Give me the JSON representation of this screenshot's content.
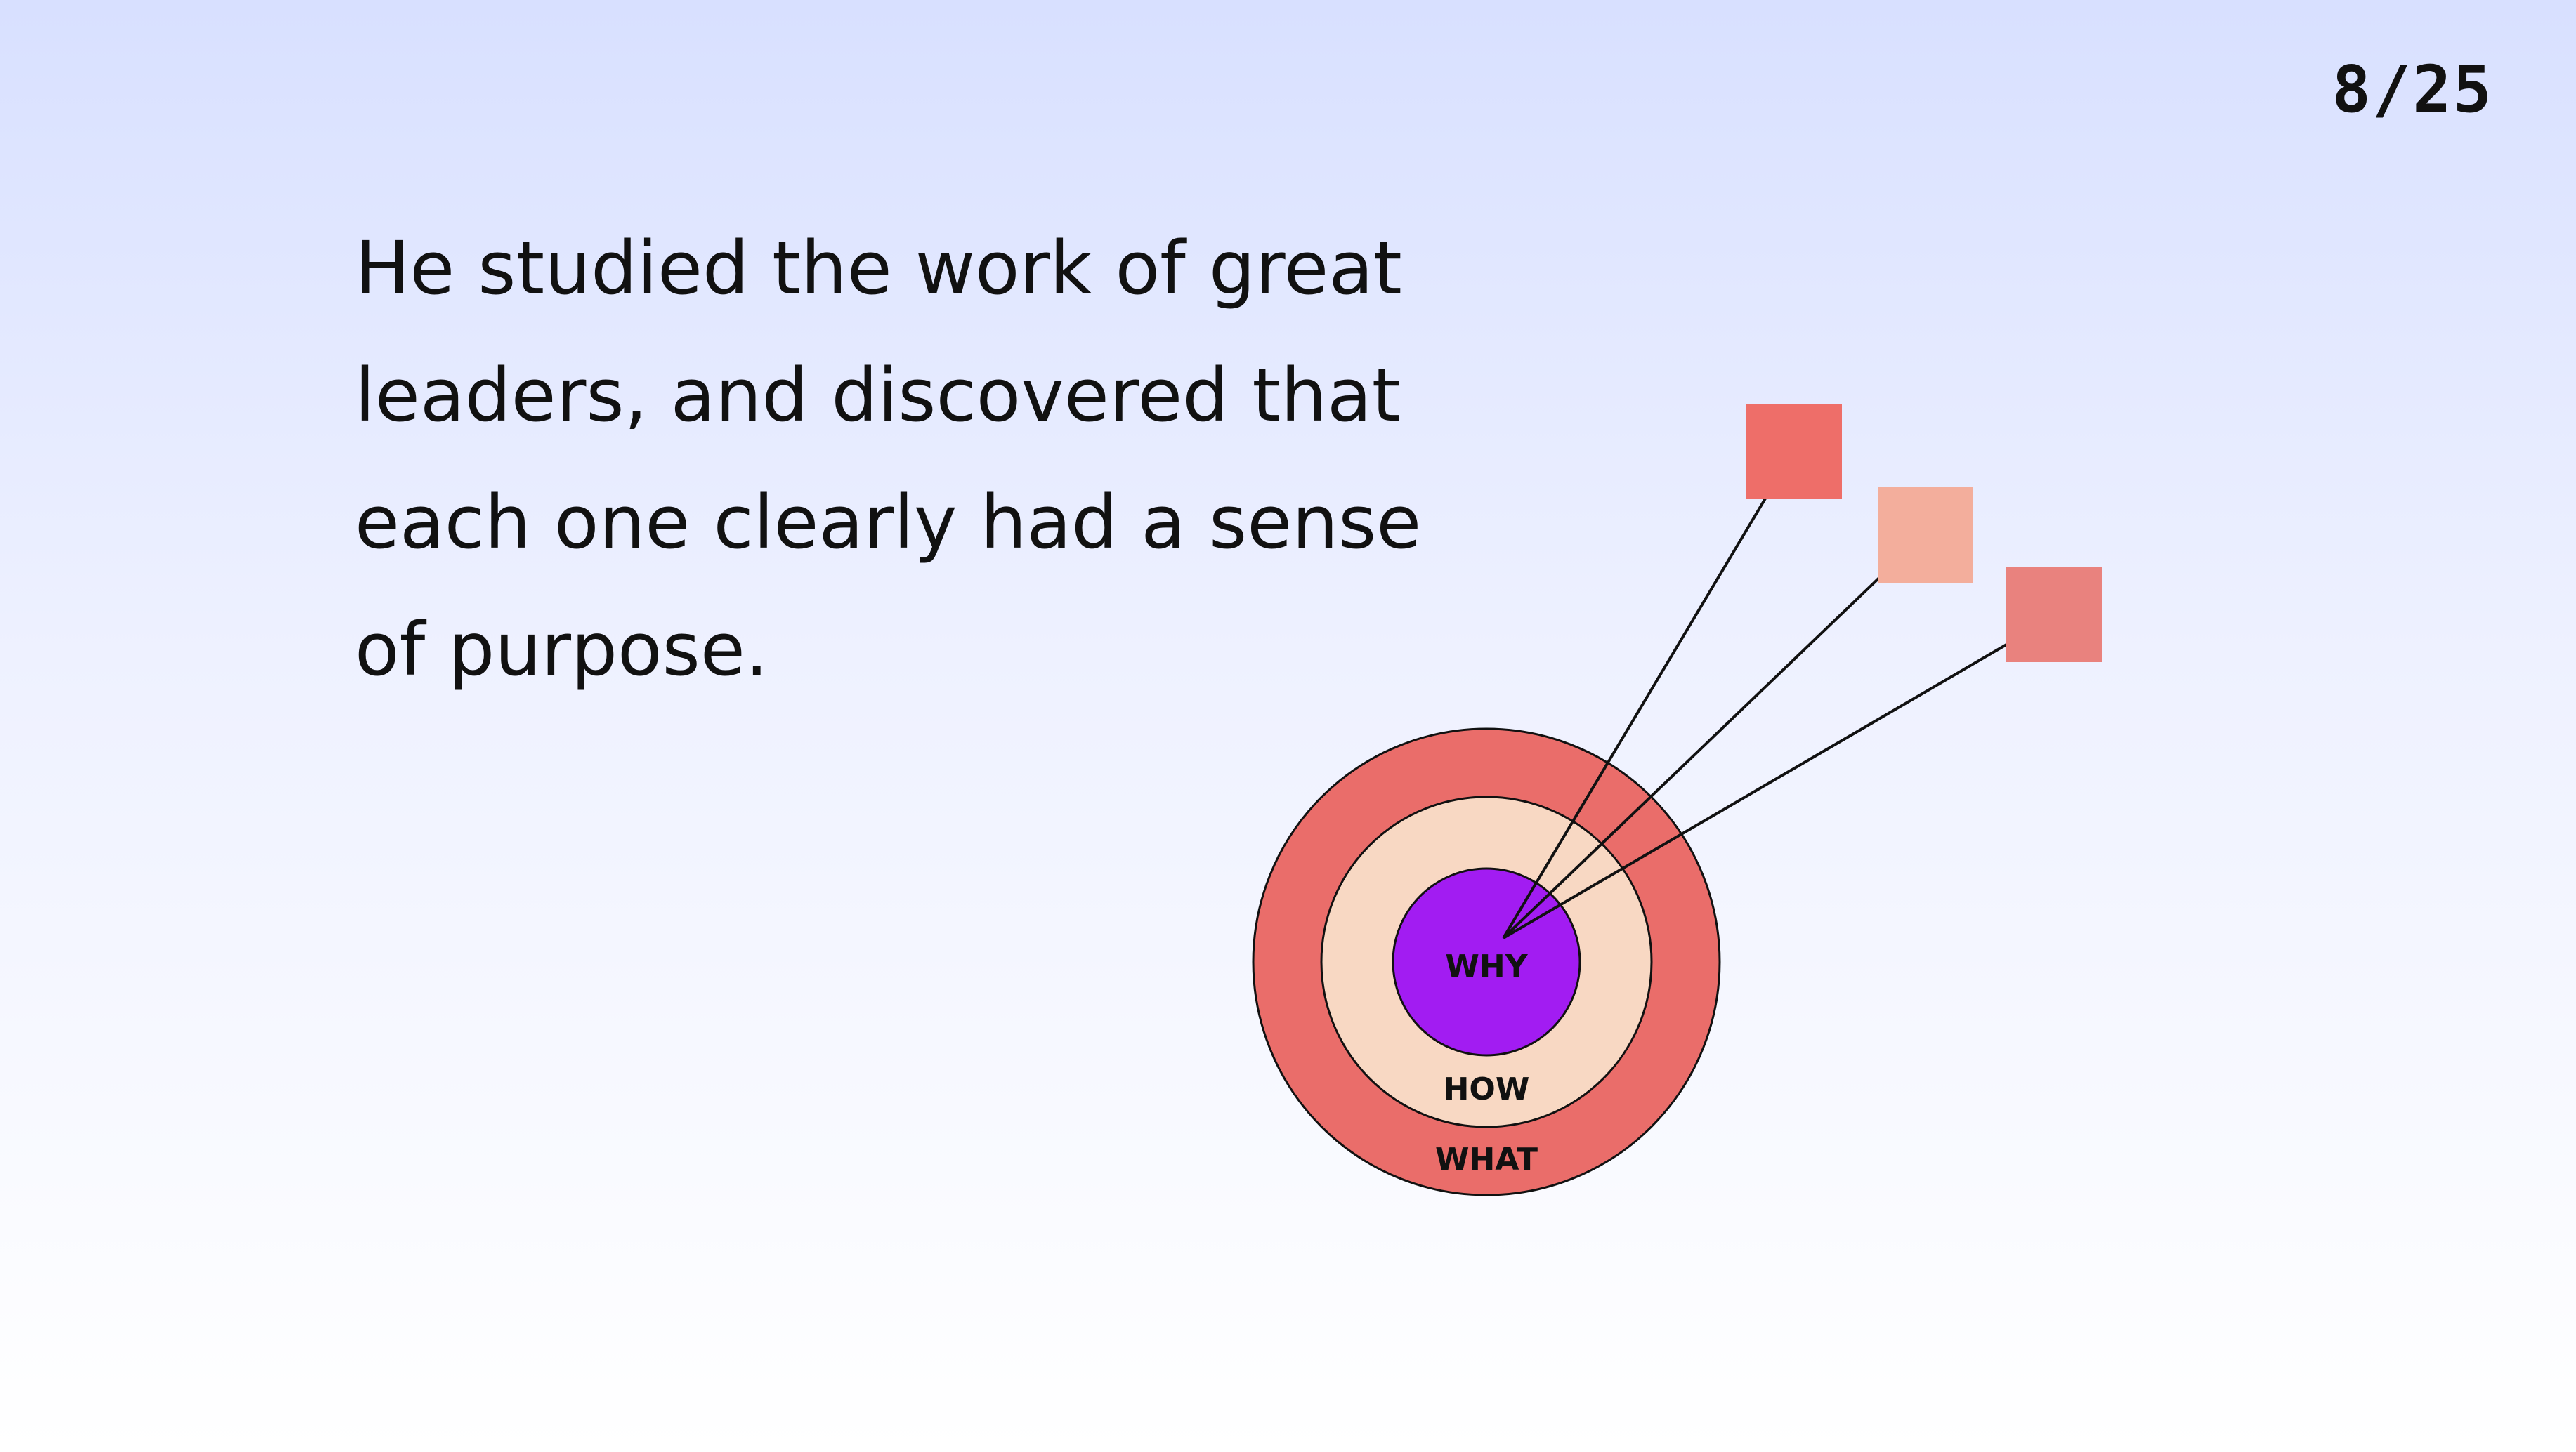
{
  "page_number": "8/25",
  "body_text": "He studied the work of great leaders, and discovered that each one clearly had a sense of purpose.",
  "diagram": {
    "rings": [
      {
        "label": "WHAT",
        "color": "#ea6d6a"
      },
      {
        "label": "HOW",
        "color": "#f8d8c3"
      },
      {
        "label": "WHY",
        "color": "#a21cf2"
      }
    ],
    "squares": [
      {
        "color": "#ee6e69"
      },
      {
        "color": "#f3ae9c"
      },
      {
        "color": "#e9827e"
      }
    ],
    "stroke_color": "#111111"
  },
  "background": {
    "top_color": "#d8e0ff",
    "bottom_color": "#ffffff"
  }
}
